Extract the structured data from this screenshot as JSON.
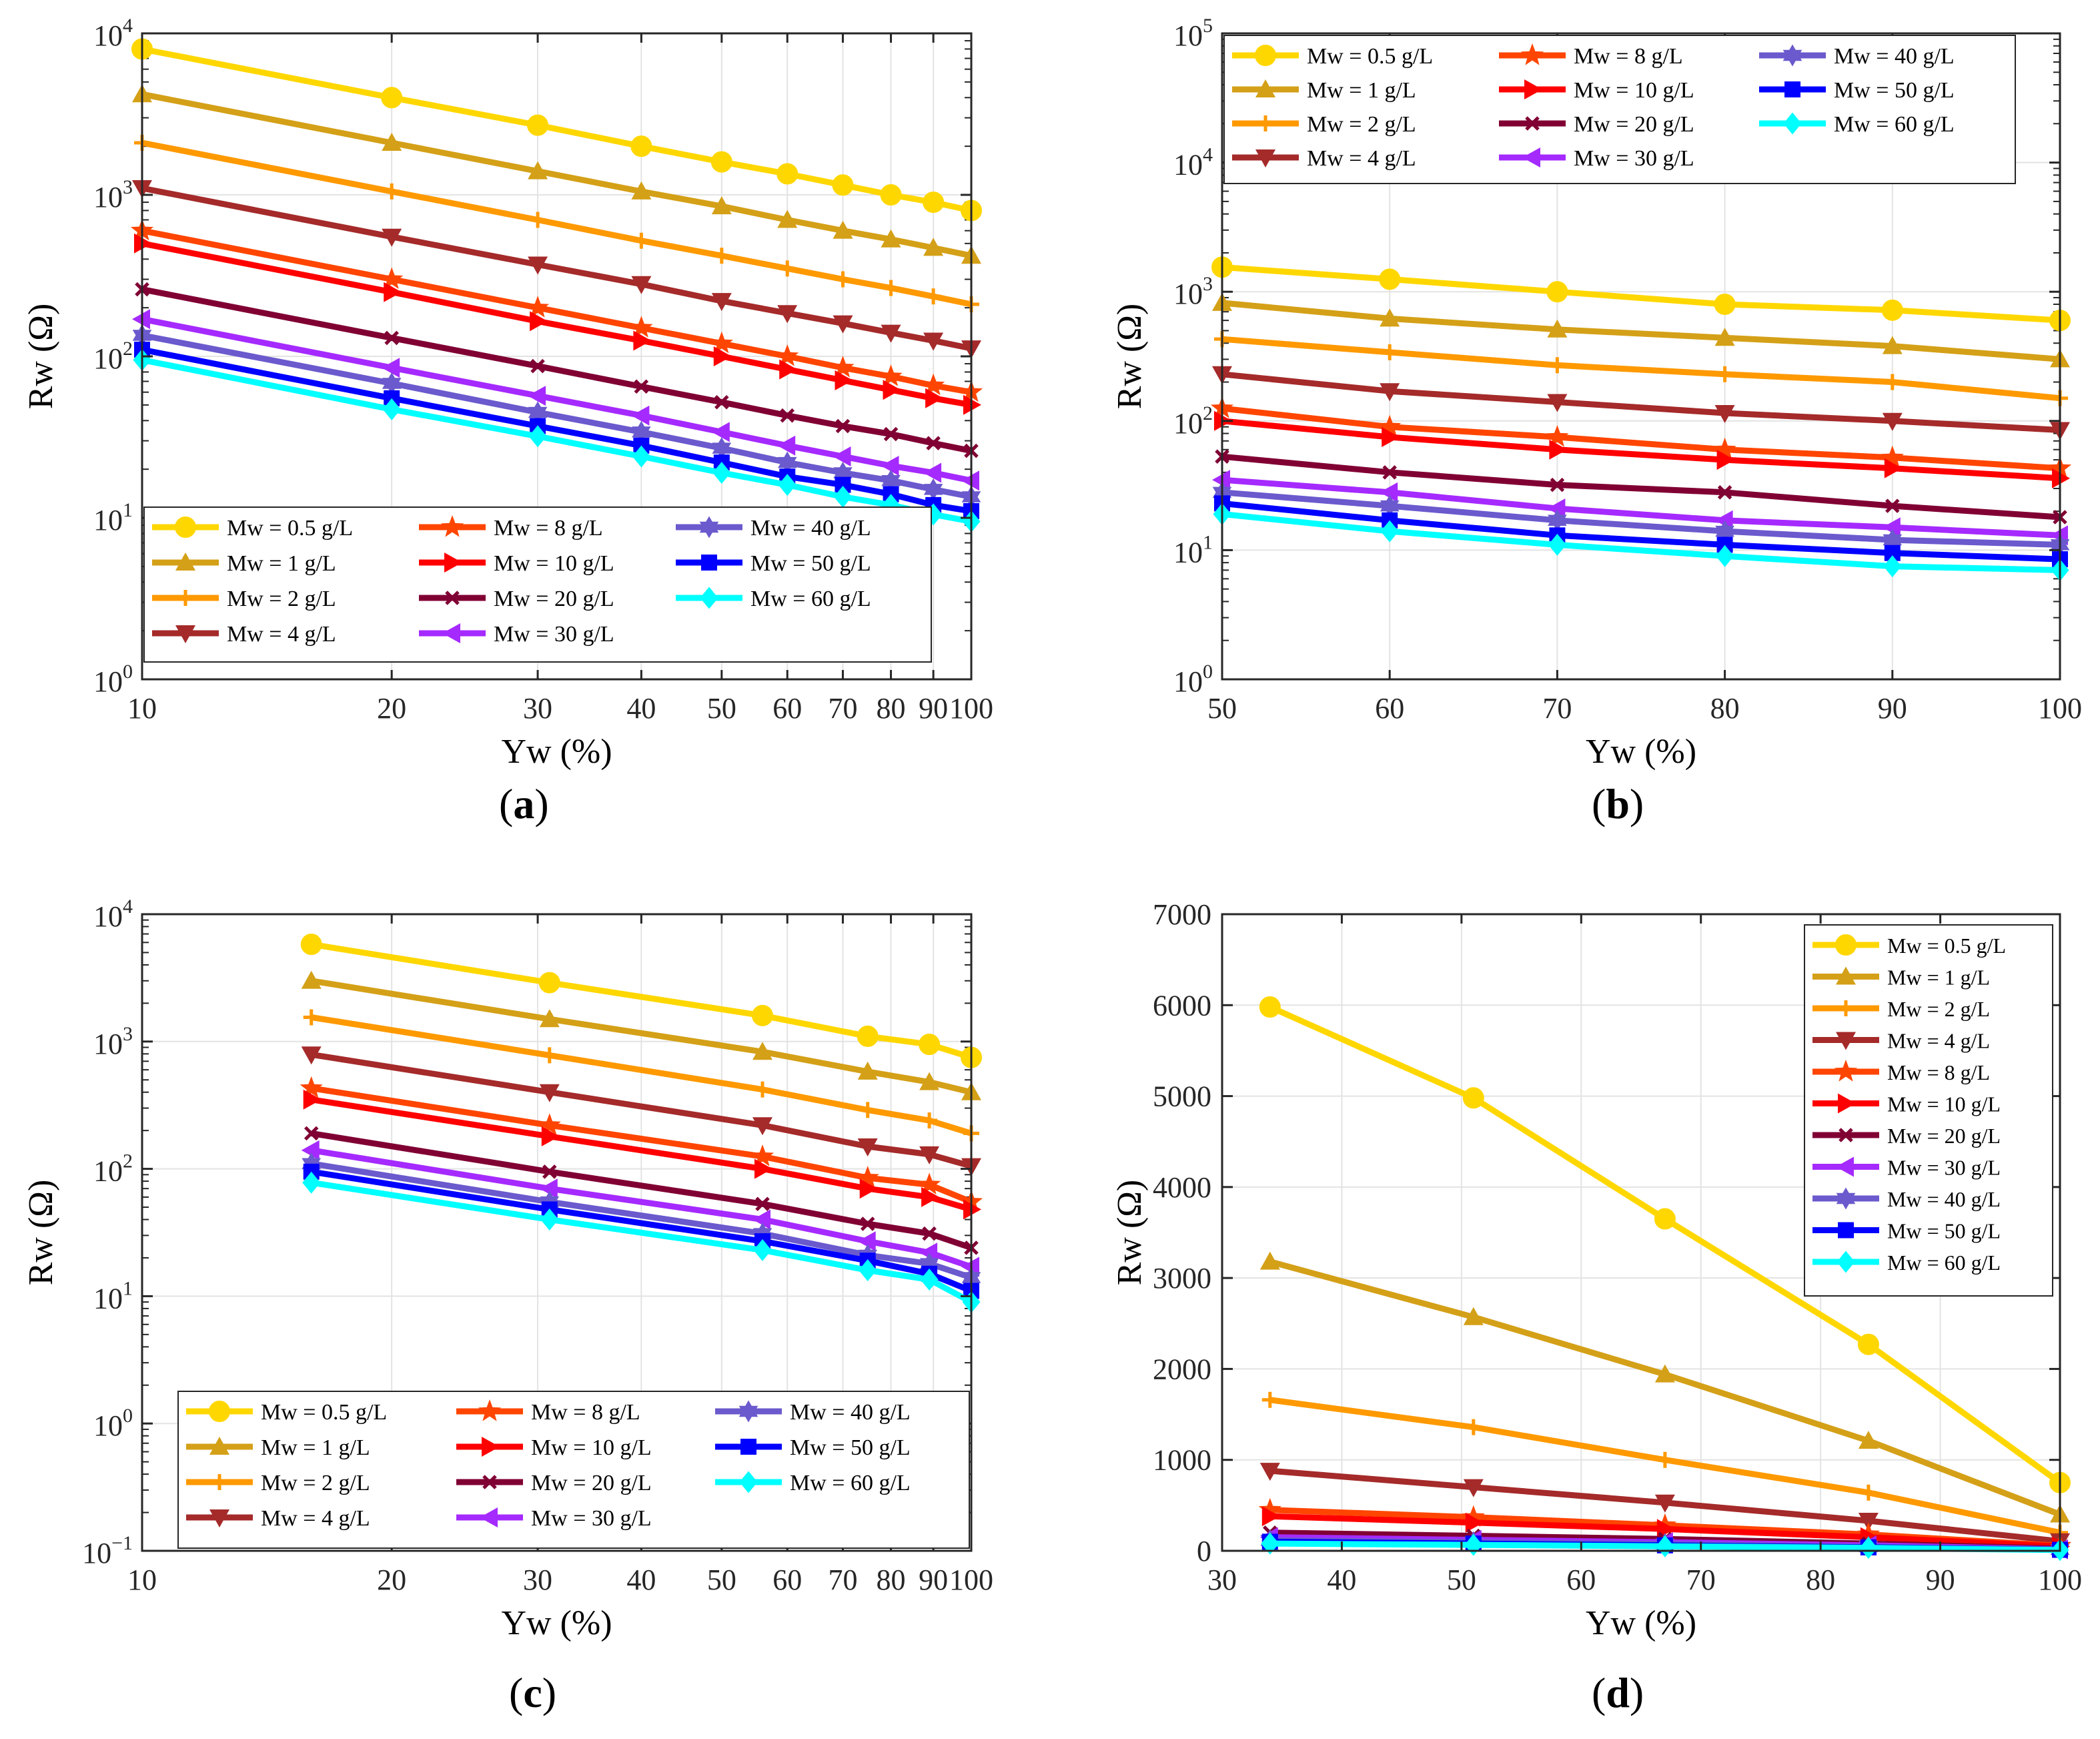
{
  "legend_labels": [
    "Mw = 0.5 g/L",
    "Mw = 1 g/L",
    "Mw = 2 g/L",
    "Mw = 4 g/L",
    "Mw = 8 g/L",
    "Mw = 10 g/L",
    "Mw = 20 g/L",
    "Mw = 30 g/L",
    "Mw = 40 g/L",
    "Mw = 50 g/L",
    "Mw = 60 g/L"
  ],
  "series_styles": [
    {
      "color": "#FFD700",
      "marker": "circle"
    },
    {
      "color": "#D4A017",
      "marker": "triangle-up"
    },
    {
      "color": "#FF9900",
      "marker": "plus"
    },
    {
      "color": "#A52A2A",
      "marker": "triangle-down"
    },
    {
      "color": "#FF4500",
      "marker": "star"
    },
    {
      "color": "#FF0000",
      "marker": "triangle-right"
    },
    {
      "color": "#800033",
      "marker": "x"
    },
    {
      "color": "#A52AFF",
      "marker": "triangle-left"
    },
    {
      "color": "#6A5ACD",
      "marker": "hexagram"
    },
    {
      "color": "#0000FF",
      "marker": "square"
    },
    {
      "color": "#00FFFF",
      "marker": "diamond"
    }
  ],
  "chart_data": [
    {
      "panel": "a",
      "caption_letter": "a",
      "type": "line",
      "xscale": "log",
      "yscale": "log",
      "xlabel": "Yw (%)",
      "ylabel": "Rw (Ω)",
      "xlim": [
        10,
        100
      ],
      "ylim": [
        1,
        10000
      ],
      "xticks": [
        10,
        20,
        30,
        40,
        50,
        60,
        70,
        80,
        90,
        100
      ],
      "xtick_labels": [
        "10",
        "20",
        "30",
        "40",
        "50",
        "60",
        "70",
        "80",
        "90",
        "100"
      ],
      "yticks": [
        1,
        10,
        100,
        1000,
        10000
      ],
      "ytick_labels": [
        {
          "base": "10",
          "exp": "0"
        },
        {
          "base": "10",
          "exp": "1"
        },
        {
          "base": "10",
          "exp": "2"
        },
        {
          "base": "10",
          "exp": "3"
        },
        {
          "base": "10",
          "exp": "4"
        }
      ],
      "grid": true,
      "legend_location": "bottom-left",
      "legend_columns": 3,
      "x": [
        10,
        20,
        30,
        40,
        50,
        60,
        70,
        80,
        90,
        100
      ],
      "series": [
        {
          "name": "Mw = 0.5 g/L",
          "values": [
            8000,
            4000,
            2700,
            2000,
            1600,
            1350,
            1150,
            1000,
            900,
            800
          ]
        },
        {
          "name": "Mw = 1 g/L",
          "values": [
            4200,
            2100,
            1400,
            1050,
            850,
            700,
            600,
            530,
            470,
            420
          ]
        },
        {
          "name": "Mw = 2 g/L",
          "values": [
            2100,
            1050,
            700,
            520,
            420,
            350,
            300,
            265,
            235,
            210
          ]
        },
        {
          "name": "Mw = 4 g/L",
          "values": [
            1100,
            550,
            370,
            280,
            220,
            185,
            160,
            140,
            125,
            112
          ]
        },
        {
          "name": "Mw = 8 g/L",
          "values": [
            600,
            300,
            200,
            150,
            120,
            100,
            85,
            75,
            66,
            60
          ]
        },
        {
          "name": "Mw = 10 g/L",
          "values": [
            500,
            250,
            165,
            125,
            100,
            83,
            71,
            62,
            55,
            50
          ]
        },
        {
          "name": "Mw = 20 g/L",
          "values": [
            260,
            130,
            87,
            65,
            52,
            43,
            37,
            33,
            29,
            26
          ]
        },
        {
          "name": "Mw = 30 g/L",
          "values": [
            170,
            85,
            57,
            43,
            34,
            28,
            24,
            21,
            19,
            17
          ]
        },
        {
          "name": "Mw = 40 g/L",
          "values": [
            135,
            68,
            45,
            34,
            27,
            22,
            19,
            17,
            15,
            13.5
          ]
        },
        {
          "name": "Mw = 50 g/L",
          "values": [
            110,
            55,
            37,
            28,
            22,
            18,
            16,
            14,
            12,
            11
          ]
        },
        {
          "name": "Mw = 60 g/L",
          "values": [
            95,
            47,
            32,
            24,
            19,
            16,
            13.5,
            12,
            10.5,
            9.5
          ]
        }
      ]
    },
    {
      "panel": "b",
      "caption_letter": "b",
      "type": "line",
      "xscale": "linear",
      "yscale": "log",
      "xlabel": "Yw (%)",
      "ylabel": "Rw (Ω)",
      "xlim": [
        50,
        100
      ],
      "ylim": [
        1,
        100000
      ],
      "xticks": [
        50,
        60,
        70,
        80,
        90,
        100
      ],
      "xtick_labels": [
        "50",
        "60",
        "70",
        "80",
        "90",
        "100"
      ],
      "yticks": [
        1,
        10,
        100,
        1000,
        10000,
        100000
      ],
      "ytick_labels": [
        {
          "base": "10",
          "exp": "0"
        },
        {
          "base": "10",
          "exp": "1"
        },
        {
          "base": "10",
          "exp": "2"
        },
        {
          "base": "10",
          "exp": "3"
        },
        {
          "base": "10",
          "exp": "4"
        },
        {
          "base": "10",
          "exp": "5"
        }
      ],
      "grid": true,
      "legend_location": "top",
      "legend_columns": 3,
      "x": [
        50,
        60,
        70,
        80,
        90,
        100
      ],
      "series": [
        {
          "name": "Mw = 0.5 g/L",
          "values": [
            1550,
            1250,
            1000,
            800,
            720,
            600
          ]
        },
        {
          "name": "Mw = 1 g/L",
          "values": [
            820,
            620,
            510,
            440,
            380,
            300
          ]
        },
        {
          "name": "Mw = 2 g/L",
          "values": [
            430,
            340,
            270,
            230,
            200,
            150
          ]
        },
        {
          "name": "Mw = 4 g/L",
          "values": [
            230,
            170,
            140,
            115,
            100,
            85
          ]
        },
        {
          "name": "Mw = 8 g/L",
          "values": [
            125,
            90,
            75,
            60,
            52,
            43
          ]
        },
        {
          "name": "Mw = 10 g/L",
          "values": [
            100,
            75,
            60,
            50,
            43,
            36
          ]
        },
        {
          "name": "Mw = 20 g/L",
          "values": [
            53,
            40,
            32,
            28,
            22,
            18
          ]
        },
        {
          "name": "Mw = 30 g/L",
          "values": [
            35,
            28,
            21,
            17,
            15,
            13
          ]
        },
        {
          "name": "Mw = 40 g/L",
          "values": [
            28,
            22,
            17,
            14,
            12,
            11
          ]
        },
        {
          "name": "Mw = 50 g/L",
          "values": [
            23,
            17,
            13,
            11,
            9.5,
            8.5
          ]
        },
        {
          "name": "Mw = 60 g/L",
          "values": [
            19,
            14,
            11,
            9,
            7.5,
            7
          ]
        }
      ]
    },
    {
      "panel": "c",
      "caption_letter": "c",
      "type": "line",
      "xscale": "log",
      "yscale": "log",
      "xlabel": "Yw (%)",
      "ylabel": "Rw (Ω)",
      "xlim": [
        10,
        100
      ],
      "ylim": [
        0.1,
        10000
      ],
      "xticks": [
        10,
        20,
        30,
        40,
        50,
        60,
        70,
        80,
        90,
        100
      ],
      "xtick_labels": [
        "10",
        "20",
        "30",
        "40",
        "50",
        "60",
        "70",
        "80",
        "90",
        "100"
      ],
      "yticks": [
        0.1,
        1,
        10,
        100,
        1000,
        10000
      ],
      "ytick_labels": [
        {
          "base": "10",
          "exp": "−1"
        },
        {
          "base": "10",
          "exp": "0"
        },
        {
          "base": "10",
          "exp": "1"
        },
        {
          "base": "10",
          "exp": "2"
        },
        {
          "base": "10",
          "exp": "3"
        },
        {
          "base": "10",
          "exp": "4"
        }
      ],
      "grid": true,
      "legend_location": "bottom-left",
      "legend_columns": 3,
      "x": [
        16,
        31,
        56,
        75,
        89,
        100
      ],
      "series": [
        {
          "name": "Mw = 0.5 g/L",
          "values": [
            5800,
            2900,
            1600,
            1100,
            950,
            750
          ]
        },
        {
          "name": "Mw = 1 g/L",
          "values": [
            3000,
            1500,
            830,
            580,
            480,
            400
          ]
        },
        {
          "name": "Mw = 2 g/L",
          "values": [
            1550,
            780,
            420,
            290,
            240,
            190
          ]
        },
        {
          "name": "Mw = 4 g/L",
          "values": [
            790,
            400,
            220,
            150,
            130,
            105
          ]
        },
        {
          "name": "Mw = 8 g/L",
          "values": [
            430,
            220,
            125,
            85,
            75,
            55
          ]
        },
        {
          "name": "Mw = 10 g/L",
          "values": [
            350,
            180,
            100,
            70,
            60,
            48
          ]
        },
        {
          "name": "Mw = 20 g/L",
          "values": [
            190,
            95,
            53,
            37,
            31,
            24
          ]
        },
        {
          "name": "Mw = 30 g/L",
          "values": [
            140,
            70,
            40,
            27,
            22,
            17
          ]
        },
        {
          "name": "Mw = 40 g/L",
          "values": [
            110,
            55,
            31,
            21,
            18,
            14
          ]
        },
        {
          "name": "Mw = 50 g/L",
          "values": [
            95,
            48,
            27,
            19,
            15,
            11
          ]
        },
        {
          "name": "Mw = 60 g/L",
          "values": [
            78,
            40,
            23,
            16,
            13.5,
            9
          ]
        }
      ]
    },
    {
      "panel": "d",
      "caption_letter": "d",
      "type": "line",
      "xscale": "linear",
      "yscale": "linear",
      "xlabel": "Yw (%)",
      "ylabel": "Rw (Ω)",
      "xlim": [
        30,
        100
      ],
      "ylim": [
        0,
        7000
      ],
      "xticks": [
        30,
        40,
        50,
        60,
        70,
        80,
        90,
        100
      ],
      "xtick_labels": [
        "30",
        "40",
        "50",
        "60",
        "70",
        "80",
        "90",
        "100"
      ],
      "yticks": [
        0,
        1000,
        2000,
        3000,
        4000,
        5000,
        6000,
        7000
      ],
      "ytick_labels": [
        "0",
        "1000",
        "2000",
        "3000",
        "4000",
        "5000",
        "6000",
        "7000"
      ],
      "grid": true,
      "legend_location": "top-right",
      "legend_columns": 1,
      "x": [
        34,
        51,
        67,
        84,
        100
      ],
      "series": [
        {
          "name": "Mw = 0.5 g/L",
          "values": [
            5980,
            4980,
            3650,
            2270,
            750
          ]
        },
        {
          "name": "Mw = 1 g/L",
          "values": [
            3180,
            2570,
            1940,
            1210,
            400
          ]
        },
        {
          "name": "Mw = 2 g/L",
          "values": [
            1660,
            1360,
            1000,
            640,
            200
          ]
        },
        {
          "name": "Mw = 4 g/L",
          "values": [
            880,
            700,
            530,
            330,
            105
          ]
        },
        {
          "name": "Mw = 8 g/L",
          "values": [
            450,
            370,
            280,
            180,
            55
          ]
        },
        {
          "name": "Mw = 10 g/L",
          "values": [
            380,
            310,
            240,
            150,
            48
          ]
        },
        {
          "name": "Mw = 20 g/L",
          "values": [
            200,
            165,
            130,
            80,
            24
          ]
        },
        {
          "name": "Mw = 30 g/L",
          "values": [
            150,
            120,
            95,
            60,
            17
          ]
        },
        {
          "name": "Mw = 40 g/L",
          "values": [
            115,
            95,
            75,
            45,
            14
          ]
        },
        {
          "name": "Mw = 50 g/L",
          "values": [
            100,
            80,
            60,
            38,
            11
          ]
        },
        {
          "name": "Mw = 60 g/L",
          "values": [
            80,
            65,
            50,
            32,
            9
          ]
        }
      ]
    }
  ]
}
